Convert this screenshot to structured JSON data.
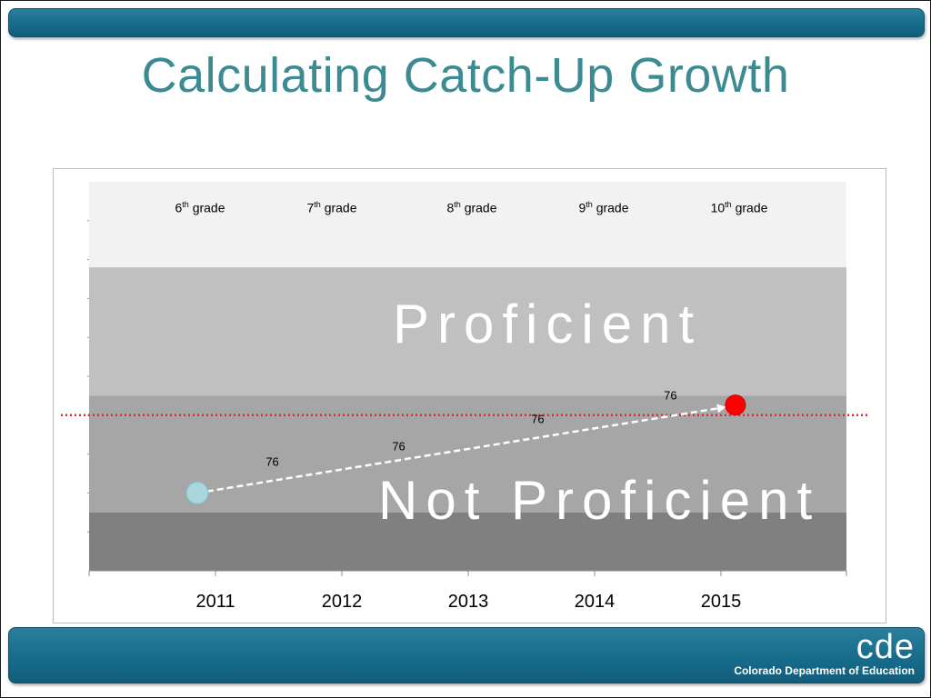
{
  "slide": {
    "title": "Calculating Catch-Up Growth"
  },
  "colors": {
    "title": "#3c8b93",
    "bar": "#176c8c",
    "band_top": "#f2f2f2",
    "band_proficient": "#c0c0c0",
    "band_middle": "#a6a6a6",
    "band_bottom": "#808080",
    "cut_line": "#e8262a",
    "start_point": "#a9d5df",
    "end_point": "#ff0000"
  },
  "chart_data": {
    "type": "line",
    "x_categories": [
      "2011",
      "2012",
      "2013",
      "2014",
      "2015"
    ],
    "grades": [
      {
        "num": "6",
        "sup": "th",
        "word": " grade"
      },
      {
        "num": "7",
        "sup": "th",
        "word": " grade"
      },
      {
        "num": "8",
        "sup": "th",
        "word": " grade"
      },
      {
        "num": "9",
        "sup": "th",
        "word": " grade"
      },
      {
        "num": "10",
        "sup": "th",
        "word": " grade"
      }
    ],
    "bands": [
      {
        "name": "top",
        "y0": 78,
        "y1": 100,
        "color": "#f2f2f2"
      },
      {
        "name": "proficient",
        "label": "Proficient",
        "y0": 45,
        "y1": 78,
        "color": "#c0c0c0"
      },
      {
        "name": "not-proficient",
        "label": "Not Proficient",
        "y0": 15,
        "y1": 45,
        "color": "#a6a6a6"
      },
      {
        "name": "bottom",
        "y0": 0,
        "y1": 15,
        "color": "#808080"
      }
    ],
    "ylim": [
      0,
      100
    ],
    "proficiency_cut": 40,
    "growth_path": {
      "start": {
        "x": 0,
        "y": 20
      },
      "end": {
        "x": 4.1,
        "y": 42.5
      }
    },
    "growth_labels": [
      {
        "label": "76",
        "x": 0.45,
        "y": 27
      },
      {
        "label": "76",
        "x": 1.45,
        "y": 31
      },
      {
        "label": "76",
        "x": 2.55,
        "y": 38
      },
      {
        "label": "76",
        "x": 3.6,
        "y": 44
      }
    ],
    "grid": false,
    "legend": "none"
  },
  "footer": {
    "logo": "cde",
    "org": "Colorado Department of Education"
  }
}
